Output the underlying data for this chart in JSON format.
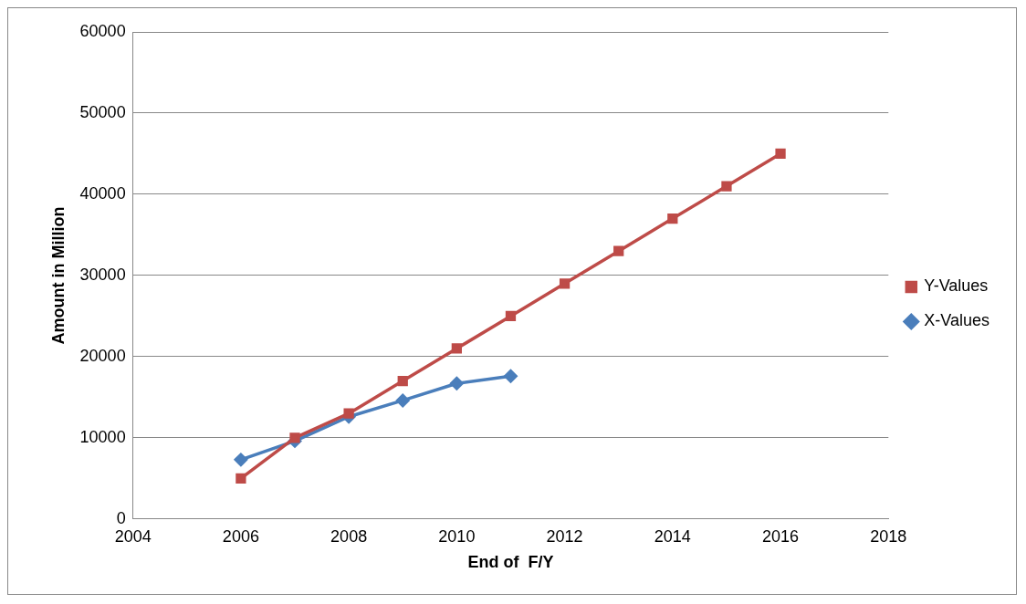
{
  "chart_data": {
    "type": "line",
    "xlabel": "End of  F/Y",
    "ylabel": "Amount in Million",
    "xlim": [
      2004,
      2018
    ],
    "xticks": [
      2004,
      2006,
      2008,
      2010,
      2012,
      2014,
      2016,
      2018
    ],
    "ylim": [
      0,
      60000
    ],
    "yticks": [
      0,
      10000,
      20000,
      30000,
      40000,
      50000,
      60000
    ],
    "grid": "y",
    "legend": "right",
    "line_style": "solid",
    "series": [
      {
        "name": "X-Values",
        "color": "#4a7ebb",
        "marker": "diamond",
        "x": [
          2006,
          2007,
          2008,
          2009,
          2010,
          2011
        ],
        "values": [
          7300,
          9600,
          12600,
          14600,
          16700,
          17600
        ]
      },
      {
        "name": "Y-Values",
        "color": "#be4b48",
        "marker": "square",
        "x": [
          2006,
          2007,
          2008,
          2009,
          2010,
          2011,
          2012,
          2013,
          2014,
          2015,
          2016
        ],
        "values": [
          5000,
          10000,
          13000,
          17000,
          21000,
          25000,
          29000,
          33000,
          37000,
          41000,
          45000
        ]
      }
    ]
  }
}
